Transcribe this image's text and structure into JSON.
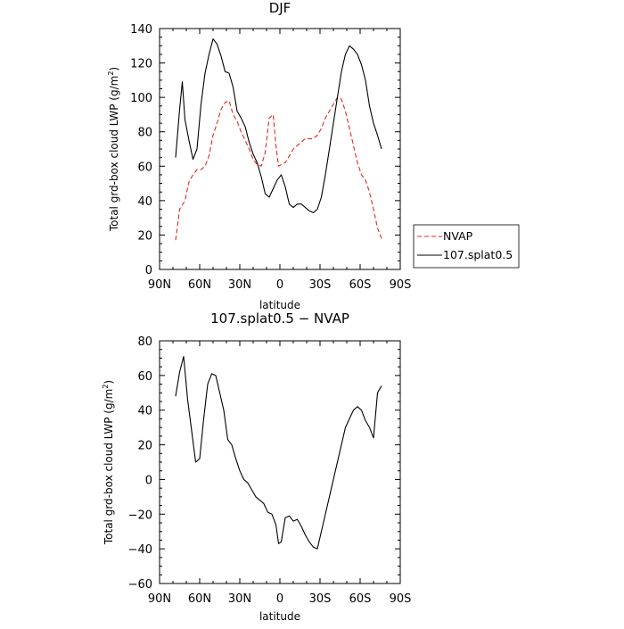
{
  "chart_data": [
    {
      "type": "line",
      "title": "DJF",
      "xlabel": "latitude",
      "ylabel": "Total grd-box cloud LWP (g/m²)",
      "ylabel_main": "Total grd-box cloud LWP (g/m",
      "ylabel_sup": "2",
      "ylabel_end": ")",
      "xlim": [
        -90,
        90
      ],
      "ylim": [
        0,
        140
      ],
      "x_ticks": [
        -90,
        -60,
        -30,
        0,
        30,
        60,
        90
      ],
      "x_tick_labels": [
        "90N",
        "60N",
        "30N",
        "0",
        "30S",
        "60S",
        "90S"
      ],
      "y_ticks": [
        0,
        20,
        40,
        60,
        80,
        100,
        120,
        140
      ],
      "y_tick_labels": [
        "0",
        "20",
        "40",
        "60",
        "80",
        "100",
        "120",
        "140"
      ],
      "legend_placement": "outside-right",
      "series": [
        {
          "name": "NVAP",
          "color": "#e8231f",
          "dash": "dashed",
          "x": [
            -78,
            -75,
            -71,
            -68,
            -65,
            -62,
            -59,
            -56,
            -53,
            -50,
            -47,
            -44,
            -41,
            -38,
            -35,
            -32,
            -29,
            -26,
            -23,
            -20,
            -17,
            -14,
            -11,
            -8,
            -5,
            -3,
            -1,
            1,
            4,
            7,
            10,
            13,
            16,
            19,
            22,
            25,
            28,
            31,
            34,
            37,
            40,
            43,
            46,
            49,
            52,
            55,
            58,
            61,
            64,
            67,
            70,
            73,
            76
          ],
          "y": [
            17,
            35,
            40,
            51,
            55,
            58,
            58,
            60,
            66,
            78,
            85,
            93,
            97,
            98,
            90,
            86,
            80,
            75,
            70,
            64,
            61,
            60,
            68,
            88,
            90,
            72,
            60,
            61,
            62,
            66,
            70,
            72,
            74,
            76,
            76,
            76,
            78,
            82,
            88,
            92,
            96,
            100,
            99,
            92,
            82,
            72,
            62,
            55,
            52,
            45,
            35,
            24,
            18
          ]
        },
        {
          "name": "107.splat0.5",
          "color": "#000000",
          "dash": "solid",
          "x": [
            -78,
            -75,
            -73,
            -71,
            -68,
            -65,
            -62,
            -59,
            -56,
            -53,
            -50,
            -47,
            -44,
            -41,
            -38,
            -35,
            -32,
            -29,
            -26,
            -23,
            -20,
            -17,
            -14,
            -11,
            -8,
            -5,
            -2,
            1,
            4,
            7,
            10,
            13,
            16,
            19,
            22,
            25,
            28,
            31,
            34,
            37,
            40,
            43,
            46,
            49,
            52,
            55,
            58,
            61,
            64,
            67,
            70,
            73,
            76
          ],
          "y": [
            65,
            93,
            109,
            87,
            75,
            64,
            70,
            96,
            114,
            125,
            134,
            131,
            124,
            115,
            114,
            106,
            92,
            88,
            83,
            74,
            67,
            62,
            54,
            44,
            42,
            47,
            52,
            55,
            48,
            38,
            36,
            38,
            38,
            36,
            34,
            33,
            35,
            42,
            55,
            70,
            85,
            100,
            115,
            125,
            130,
            128,
            125,
            119,
            110,
            95,
            85,
            78,
            70
          ]
        }
      ]
    },
    {
      "type": "line",
      "title": "107.splat0.5 − NVAP",
      "xlabel": "latitude",
      "ylabel": "Total grd-box cloud LWP (g/m²)",
      "ylabel_main": "Total grd-box cloud LWP (g/m",
      "ylabel_sup": "2",
      "ylabel_end": ")",
      "xlim": [
        -90,
        90
      ],
      "ylim": [
        -60,
        80
      ],
      "x_ticks": [
        -90,
        -60,
        -30,
        0,
        30,
        60,
        90
      ],
      "x_tick_labels": [
        "90N",
        "60N",
        "30N",
        "0",
        "30S",
        "60S",
        "90S"
      ],
      "y_ticks": [
        -60,
        -40,
        -20,
        0,
        20,
        40,
        60,
        80
      ],
      "y_tick_labels": [
        "−60",
        "−40",
        "−20",
        "0",
        "20",
        "40",
        "60",
        "80"
      ],
      "series": [
        {
          "color": "#000000",
          "dash": "solid",
          "x": [
            -78,
            -75,
            -72,
            -69,
            -66,
            -63,
            -60,
            -57,
            -54,
            -51,
            -48,
            -45,
            -42,
            -39,
            -36,
            -33,
            -30,
            -27,
            -24,
            -21,
            -18,
            -15,
            -12,
            -9,
            -6,
            -3,
            -1,
            1,
            4,
            7,
            10,
            13,
            16,
            19,
            22,
            25,
            28,
            31,
            34,
            37,
            40,
            43,
            46,
            49,
            52,
            55,
            58,
            61,
            64,
            67,
            70,
            73,
            76
          ],
          "y": [
            48,
            62,
            71,
            46,
            28,
            10,
            12,
            35,
            55,
            61,
            60,
            50,
            40,
            23,
            20,
            12,
            5,
            0,
            -2,
            -6,
            -10,
            -12,
            -14,
            -19,
            -20,
            -26,
            -37,
            -36,
            -22,
            -21,
            -24,
            -23,
            -27,
            -32,
            -36,
            -39,
            -40,
            -30,
            -20,
            -10,
            0,
            10,
            20,
            30,
            35,
            40,
            42,
            40,
            34,
            30,
            24,
            50,
            54
          ]
        }
      ]
    }
  ]
}
